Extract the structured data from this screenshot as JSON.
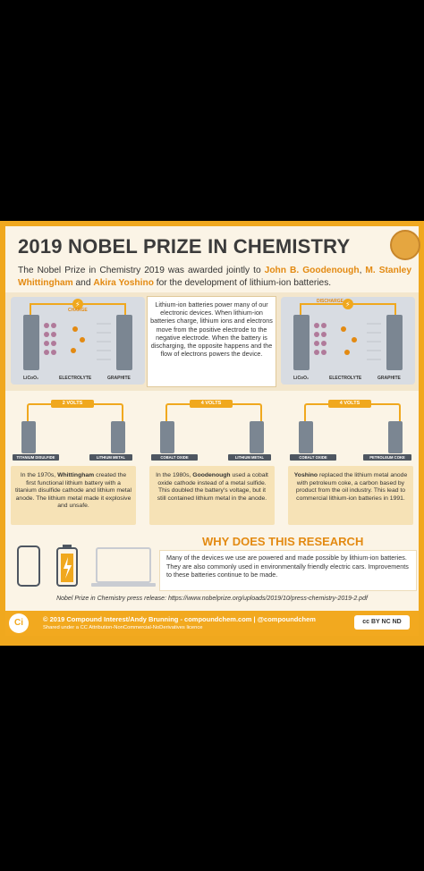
{
  "title": "2019 NOBEL PRIZE IN CHEMISTRY",
  "intro": {
    "part1": "The Nobel Prize in Chemistry 2019 was awarded jointly to ",
    "name1": "John B. Goodenough",
    "sep1": ", ",
    "name2": "M. Stanley Whittingham",
    "sep2": " and ",
    "name3": "Akira Yoshino",
    "part2": " for the development of lithium-ion batteries."
  },
  "charge_panel": {
    "label": "CHARGE",
    "left_label": "LiCoO₂",
    "mid_label": "ELECTROLYTE",
    "right_label": "GRAPHITE"
  },
  "discharge_panel": {
    "label": "DISCHARGE",
    "left_label": "LiCoO₂",
    "mid_label": "ELECTROLYTE",
    "right_label": "GRAPHITE"
  },
  "explain": "Lithium-ion batteries power many of our electronic devices. When lithium-ion batteries charge, lithium ions and electrons move from the positive electrode to the negative electrode. When the battery is discharging, the opposite happens and the flow of electrons powers the device.",
  "cells": [
    {
      "volts": "2 VOLTS",
      "left": "TITANIUM DISULFIDE",
      "right": "LITHIUM METAL"
    },
    {
      "volts": "4 VOLTS",
      "left": "COBALT OXIDE",
      "right": "LITHIUM METAL"
    },
    {
      "volts": "4 VOLTS",
      "left": "COBALT OXIDE",
      "right": "PETROLEUM COKE"
    }
  ],
  "descs": [
    {
      "lead": "In the 1970s, ",
      "name": "Whittingham",
      "rest": " created the first functional lithium battery with a titanium disulfide cathode and lithium metal anode. The lithium metal made it explosive and unsafe."
    },
    {
      "lead": "In the 1980s, ",
      "name": "Goodenough",
      "rest": " used a cobalt oxide cathode instead of a metal sulfide. This doubled the battery's voltage, but it still contained lithium metal in the anode."
    },
    {
      "lead": "",
      "name": "Yoshino",
      "rest": " replaced the lithium metal anode with petroleum coke, a carbon based by product from the oil industry. This lead to commercial lithium-ion batteries in 1991."
    }
  ],
  "why_title": "WHY DOES THIS RESEARCH MATTER?",
  "why_text": "Many of the devices we use are powered and made possible by lithium-ion batteries. They are also commonly used in environmentally friendly electric cars. Improvements to these batteries continue to be made.",
  "press": "Nobel Prize in Chemistry press release: https://www.nobelprize.org/uploads/2019/10/press-chemistry-2019-2.pdf",
  "footer": {
    "logo": "Ci",
    "line1": "© 2019 Compound Interest/Andy Brunning - compoundchem.com | @compoundchem",
    "line2": "Shared under a CC Attribution-NonCommercial-NoDerivatives licence",
    "cc": "cc BY NC ND"
  },
  "colors": {
    "accent": "#f0a81e",
    "highlight": "#e38a12",
    "background": "#fbf4e6"
  }
}
